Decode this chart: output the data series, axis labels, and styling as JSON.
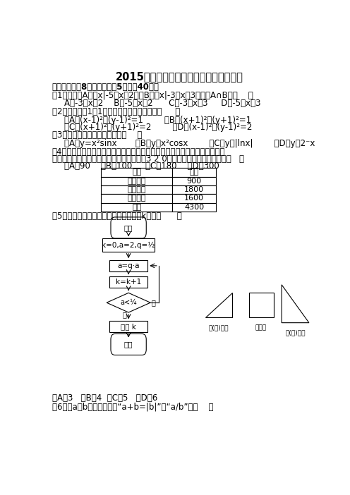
{
  "title": "2015年北京高考文科数学试题及参考答案",
  "section1": "一、选择题共8小题，每小题5分，冈40分。",
  "q1": "（1）若集合A＝｛x|-5＜x＜2｝，B＝｛x|-3＜x＜3｝，则A∩B＝（    ）",
  "q1_opts": "A．-3＜x＜2    B．-5＜x＜2      C．-3＜x＜3     D．-5＜x＜3",
  "q2": "（2）圆心为（1，1）且过原点的圆的方程是（     ）",
  "q2_opt1": "（A）(x-1)²＋(y-1)²=1        （B）(x+1)²＋(y+1)²=1",
  "q2_opt2": "（C）(x+1)²＋(y+1)²=2        （D）(x-1)²＋(y-1)²=2",
  "q3": "（3）下列函数中为偶函数的是（    ）",
  "q3_opts": "（A）y=x²sinx       （B）y＝x²cosx        （C）y＝|lnx|        （D）y＝2⁻x",
  "q4_line1": "（4）某校老年，中年和青年教师的人数见下表，采用分层抗样的方法调查教师",
  "q4_line2": "的身体情况，在抖取的样本中，青年教师有3 2 0人，则该样本的老年人数为（   ）",
  "q4_answers": "（A）90    （B）100     （C）180    （D）300",
  "table_headers": [
    "类别",
    "人数"
  ],
  "table_rows": [
    [
      "老年教师",
      "900"
    ],
    [
      "中年教师",
      "1800"
    ],
    [
      "青年教师",
      "1600"
    ],
    [
      "合计",
      "4300"
    ]
  ],
  "q5": "（5）执行如果所示的程序框图，输出的k値为（      ）",
  "q5_answers": "（A）3   （B）4  （C）5   （D）6",
  "q6": "（6）设a，b是非零向量，“a+b=|b|”是“a/b”的（    ）",
  "bg_color": "#ffffff",
  "text_color": "#000000",
  "font_size": 8.5
}
